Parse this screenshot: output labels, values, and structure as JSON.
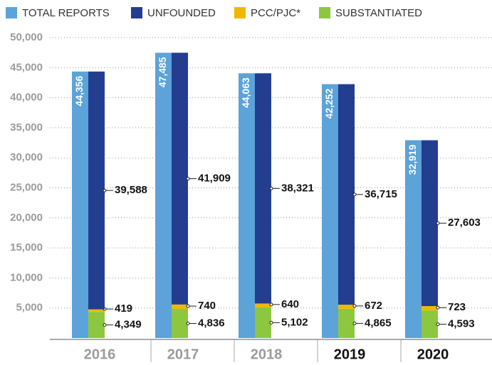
{
  "chart_data": {
    "type": "bar",
    "categories": [
      "2016",
      "2017",
      "2018",
      "2019",
      "2020"
    ],
    "category_label_colors": [
      "#9b9b9b",
      "#9b9b9b",
      "#9b9b9b",
      "#111111",
      "#111111"
    ],
    "series": [
      {
        "name": "TOTAL REPORTS",
        "color": "#5ba3d9",
        "values": [
          44356,
          47485,
          44063,
          42252,
          32919
        ],
        "value_labels": [
          "44,356",
          "47,485",
          "44,063",
          "42,252",
          "32,919"
        ]
      },
      {
        "name": "UNFOUNDED",
        "color": "#233d8f",
        "values": [
          39588,
          41909,
          38321,
          36715,
          27603
        ],
        "value_labels": [
          "39,588",
          "41,909",
          "38,321",
          "36,715",
          "27,603"
        ]
      },
      {
        "name": "PCC/PJC*",
        "color": "#f0b800",
        "values": [
          419,
          740,
          640,
          672,
          723
        ]
      },
      {
        "name": "SUBSTANTIATED",
        "color": "#8dc63f",
        "values": [
          4349,
          4836,
          5102,
          4865,
          4593
        ],
        "value_labels": [
          "4,349",
          "4,836",
          "5,102",
          "4,865",
          "4,593"
        ]
      }
    ],
    "ylim": [
      0,
      50000
    ],
    "yticks": [
      {
        "value": 5000,
        "label": "5,000"
      },
      {
        "value": 10000,
        "label": "10,000"
      },
      {
        "value": 15000,
        "label": "15,000"
      },
      {
        "value": 20000,
        "label": "20,000"
      },
      {
        "value": 25000,
        "label": "25,000"
      },
      {
        "value": 30000,
        "label": "30,000"
      },
      {
        "value": 35000,
        "label": "35,000"
      },
      {
        "value": 40000,
        "label": "40,000"
      },
      {
        "value": 45000,
        "label": "45,000"
      },
      {
        "value": 50000,
        "label": "50,000"
      }
    ],
    "grid": true
  }
}
